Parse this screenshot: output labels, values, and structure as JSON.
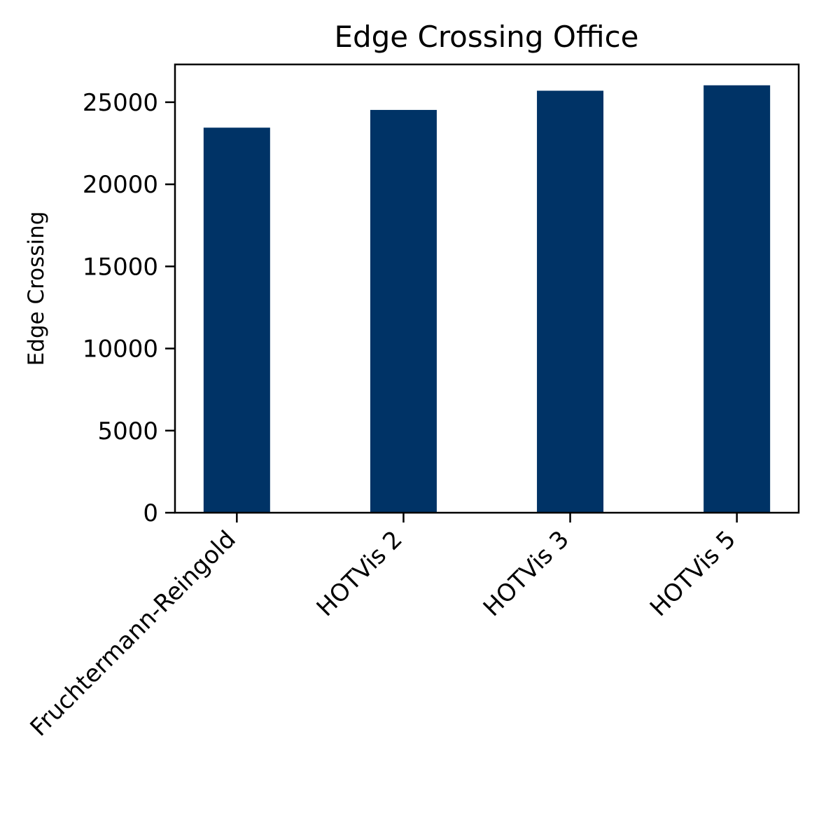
{
  "chart_data": {
    "type": "bar",
    "title": "Edge Crossing Office",
    "xlabel": "",
    "ylabel": "Edge Crossing",
    "categories": [
      "Fruchtermann-Reingold",
      "HOTVis 2",
      "HOTVis 3",
      "HOTVis 5"
    ],
    "values": [
      23450,
      24530,
      25700,
      26030
    ],
    "ylim": [
      0,
      27300
    ],
    "yticks": [
      0,
      5000,
      10000,
      15000,
      20000,
      25000
    ],
    "bar_color": "#003366",
    "grid": false,
    "legend": "none"
  }
}
